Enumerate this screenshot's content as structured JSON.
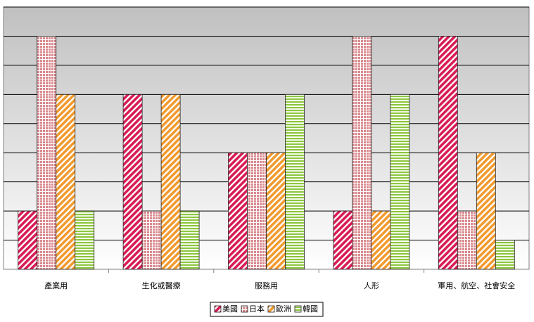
{
  "chart_data": {
    "type": "bar",
    "categories": [
      "產業用",
      "生化或醫療",
      "服務用",
      "人形",
      "軍用、航空、社會安全"
    ],
    "series": [
      {
        "name": "美國",
        "color": "#d81b55",
        "pattern": "diagonal",
        "values": [
          2,
          6,
          4,
          2,
          8
        ]
      },
      {
        "name": "日本",
        "color": "#d98a8f",
        "pattern": "check",
        "values": [
          8,
          2,
          4,
          8,
          2
        ]
      },
      {
        "name": "歐洲",
        "color": "#f29a2e",
        "pattern": "diagonal",
        "values": [
          6,
          6,
          4,
          2,
          4
        ]
      },
      {
        "name": "韓國",
        "color": "#8dc63f",
        "pattern": "horizontal",
        "values": [
          2,
          2,
          6,
          6,
          1
        ]
      }
    ],
    "ylim": [
      0,
      9
    ],
    "yticks": [
      0,
      1,
      2,
      3,
      4,
      5,
      6,
      7,
      8,
      9
    ],
    "grid": true,
    "legend": "bottom"
  }
}
